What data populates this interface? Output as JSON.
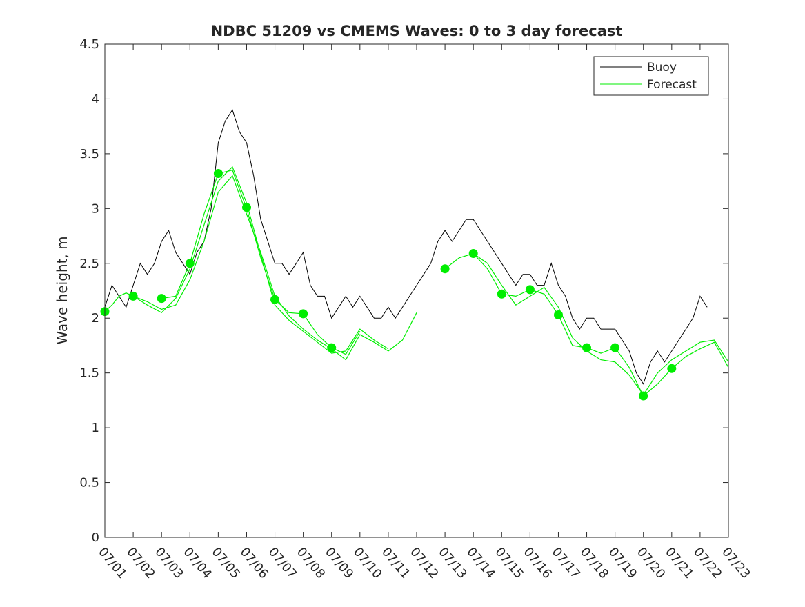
{
  "chart_data": {
    "type": "line",
    "title": "NDBC 51209 vs CMEMS Waves: 0 to 3 day forecast",
    "xlabel": "",
    "ylabel": "Wave height, m",
    "xlim": [
      "07/01",
      "07/23"
    ],
    "ylim": [
      0,
      4.5
    ],
    "x_tick_labels": [
      "07/01",
      "07/02",
      "07/03",
      "07/04",
      "07/05",
      "07/06",
      "07/07",
      "07/08",
      "07/09",
      "07/10",
      "07/11",
      "07/12",
      "07/13",
      "07/14",
      "07/15",
      "07/16",
      "07/17",
      "07/18",
      "07/19",
      "07/20",
      "07/21",
      "07/22",
      "07/23"
    ],
    "y_tick_labels": [
      "0",
      "0.5",
      "1",
      "1.5",
      "2",
      "2.5",
      "3",
      "3.5",
      "4",
      "4.5"
    ],
    "grid": false,
    "legend_position": "top-right",
    "colors": {
      "buoy": "#000000",
      "forecast": "#00ee00",
      "axis": "#262626"
    },
    "series": [
      {
        "name": "Buoy",
        "x": [
          "07/01 00:00",
          "07/01 06:00",
          "07/01 12:00",
          "07/01 18:00",
          "07/02 00:00",
          "07/02 06:00",
          "07/02 12:00",
          "07/02 18:00",
          "07/03 00:00",
          "07/03 06:00",
          "07/03 12:00",
          "07/03 18:00",
          "07/04 00:00",
          "07/04 06:00",
          "07/04 12:00",
          "07/04 18:00",
          "07/05 00:00",
          "07/05 06:00",
          "07/05 12:00",
          "07/05 18:00",
          "07/06 00:00",
          "07/06 06:00",
          "07/06 12:00",
          "07/06 18:00",
          "07/07 00:00",
          "07/07 06:00",
          "07/07 12:00",
          "07/07 18:00",
          "07/08 00:00",
          "07/08 06:00",
          "07/08 12:00",
          "07/08 18:00",
          "07/09 00:00",
          "07/09 06:00",
          "07/09 12:00",
          "07/09 18:00",
          "07/10 00:00",
          "07/10 06:00",
          "07/10 12:00",
          "07/10 18:00",
          "07/11 00:00",
          "07/11 06:00",
          "07/11 12:00",
          "07/11 18:00",
          "07/12 00:00",
          "07/12 06:00",
          "07/12 12:00",
          "07/12 18:00",
          "07/13 00:00",
          "07/13 06:00",
          "07/13 12:00",
          "07/13 18:00",
          "07/14 00:00",
          "07/14 06:00",
          "07/14 12:00",
          "07/14 18:00",
          "07/15 00:00",
          "07/15 06:00",
          "07/15 12:00",
          "07/15 18:00",
          "07/16 00:00",
          "07/16 06:00",
          "07/16 12:00",
          "07/16 18:00",
          "07/17 00:00",
          "07/17 06:00",
          "07/17 12:00",
          "07/17 18:00",
          "07/18 00:00",
          "07/18 06:00",
          "07/18 12:00",
          "07/18 18:00",
          "07/19 00:00",
          "07/19 06:00",
          "07/19 12:00",
          "07/19 18:00",
          "07/20 00:00",
          "07/20 06:00",
          "07/20 12:00",
          "07/20 18:00",
          "07/21 00:00",
          "07/21 06:00",
          "07/21 12:00",
          "07/21 18:00",
          "07/22 00:00",
          "07/22 06:00"
        ],
        "y": [
          2.1,
          2.3,
          2.2,
          2.1,
          2.3,
          2.5,
          2.4,
          2.5,
          2.7,
          2.8,
          2.6,
          2.5,
          2.4,
          2.6,
          2.7,
          3.0,
          3.6,
          3.8,
          3.9,
          3.7,
          3.6,
          3.3,
          2.9,
          2.7,
          2.5,
          2.5,
          2.4,
          2.5,
          2.6,
          2.3,
          2.2,
          2.2,
          2.0,
          2.1,
          2.2,
          2.1,
          2.2,
          2.1,
          2.0,
          2.0,
          2.1,
          2.0,
          2.1,
          2.2,
          2.3,
          2.4,
          2.5,
          2.7,
          2.8,
          2.7,
          2.8,
          2.9,
          2.9,
          2.8,
          2.7,
          2.6,
          2.5,
          2.4,
          2.3,
          2.4,
          2.4,
          2.3,
          2.3,
          2.5,
          2.3,
          2.2,
          2.0,
          1.9,
          2.0,
          2.0,
          1.9,
          1.9,
          1.9,
          1.8,
          1.7,
          1.5,
          1.4,
          1.6,
          1.7,
          1.6,
          1.7,
          1.8,
          1.9,
          2.0,
          2.2,
          2.1
        ]
      },
      {
        "name": "Forecast",
        "x": [
          "07/01",
          "07/02",
          "07/03",
          "07/04",
          "07/05",
          "07/06",
          "07/07",
          "07/08",
          "07/09",
          "07/13",
          "07/14",
          "07/15",
          "07/16",
          "07/17",
          "07/18",
          "07/19",
          "07/20",
          "07/21"
        ],
        "y": [
          2.06,
          2.2,
          2.18,
          2.5,
          3.32,
          3.01,
          2.17,
          2.04,
          1.73,
          2.45,
          2.59,
          2.22,
          2.26,
          2.03,
          1.73,
          1.73,
          1.29,
          1.54
        ],
        "segments": [
          {
            "x": [
              "07/01",
              "07/01 06:00",
              "07/01 12:00",
              "07/01 18:00",
              "07/02",
              "07/02 12:00",
              "07/03",
              "07/03 12:00",
              "07/04",
              "07/04 12:00",
              "07/05",
              "07/05 12:00",
              "07/06",
              "07/06 12:00",
              "07/07",
              "07/07 12:00",
              "07/08",
              "07/08 12:00",
              "07/09",
              "07/09 12:00",
              "07/10",
              "07/10 12:00",
              "07/11",
              "07/11 12:00",
              "07/12"
            ],
            "y": [
              2.06,
              2.12,
              2.2,
              2.23,
              2.2,
              2.15,
              2.08,
              2.12,
              2.35,
              2.7,
              3.15,
              3.3,
              2.95,
              2.6,
              2.2,
              2.02,
              1.9,
              1.8,
              1.72,
              1.62,
              1.85,
              1.78,
              1.7,
              1.8,
              2.05
            ]
          },
          {
            "x": [
              "07/02",
              "07/02 12:00",
              "07/03",
              "07/03 12:00",
              "07/04",
              "07/04 12:00",
              "07/05",
              "07/05 12:00",
              "07/06",
              "07/06 12:00",
              "07/07",
              "07/07 12:00",
              "07/08",
              "07/08 12:00",
              "07/09",
              "07/09 12:00",
              "07/10",
              "07/10 12:00",
              "07/11"
            ],
            "y": [
              2.2,
              2.12,
              2.05,
              2.18,
              2.45,
              2.85,
              3.25,
              3.38,
              3.05,
              2.58,
              2.12,
              1.98,
              1.88,
              1.78,
              1.68,
              1.7,
              1.9,
              1.8,
              1.72
            ]
          },
          {
            "x": [
              "07/03",
              "07/03 12:00",
              "07/04",
              "07/04 12:00",
              "07/05",
              "07/05 12:00",
              "07/06",
              "07/06 12:00",
              "07/07",
              "07/07 12:00",
              "07/08",
              "07/08 12:00",
              "07/09",
              "07/09 12:00",
              "07/10"
            ],
            "y": [
              2.18,
              2.2,
              2.5,
              2.95,
              3.32,
              3.35,
              3.0,
              2.55,
              2.17,
              2.05,
              2.04,
              1.85,
              1.73,
              1.67,
              1.88
            ]
          },
          {
            "x": [
              "07/13",
              "07/13 12:00",
              "07/14",
              "07/14 12:00",
              "07/15",
              "07/15 12:00",
              "07/16",
              "07/16 12:00",
              "07/17",
              "07/17 12:00",
              "07/18",
              "07/18 12:00",
              "07/19",
              "07/19 12:00",
              "07/20",
              "07/20 12:00",
              "07/21",
              "07/21 12:00",
              "07/22",
              "07/22 12:00",
              "07/23"
            ],
            "y": [
              2.45,
              2.55,
              2.59,
              2.45,
              2.22,
              2.2,
              2.26,
              2.22,
              2.03,
              1.75,
              1.73,
              1.68,
              1.73,
              1.55,
              1.29,
              1.4,
              1.54,
              1.65,
              1.72,
              1.78,
              1.55
            ]
          },
          {
            "x": [
              "07/14",
              "07/14 12:00",
              "07/15",
              "07/15 12:00",
              "07/16",
              "07/16 12:00",
              "07/17",
              "07/17 12:00",
              "07/18",
              "07/18 12:00",
              "07/19",
              "07/19 12:00",
              "07/20",
              "07/20 12:00",
              "07/21",
              "07/21 12:00",
              "07/22",
              "07/22 12:00",
              "07/23"
            ],
            "y": [
              2.59,
              2.5,
              2.3,
              2.12,
              2.2,
              2.28,
              2.1,
              1.82,
              1.7,
              1.62,
              1.6,
              1.48,
              1.3,
              1.5,
              1.62,
              1.7,
              1.78,
              1.8,
              1.6
            ]
          }
        ]
      }
    ]
  }
}
